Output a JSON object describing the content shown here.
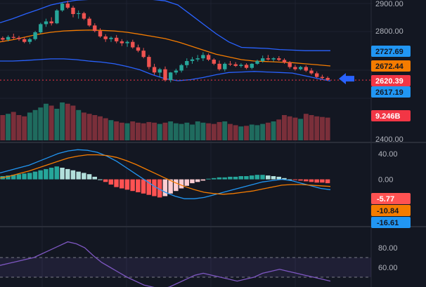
{
  "chart_data": {
    "type": "candlestick",
    "colors": {
      "background": "#131722",
      "up": "#26a69a",
      "down": "#ef5350",
      "bb_upper": "#2962ff",
      "bb_lower": "#2962ff",
      "bb_basis": "#f57c00",
      "macd": "#2196f3",
      "signal": "#f57c00",
      "rsi": "#7e57c2",
      "vol_up": "#1f6b5e",
      "vol_down": "#7a2f3a",
      "hist_up_strong": "#26a69a",
      "hist_up_weak": "#b2dfdb",
      "hist_down_strong": "#ff5252",
      "hist_down_weak": "#ffcdd2",
      "arrow": "#2962ff"
    },
    "price_panel": {
      "y_ticks": [
        "2900.00",
        "2800.00"
      ],
      "y_tick_values": [
        2900,
        2800
      ],
      "candles": [
        [
          2774,
          2780,
          2760,
          2768
        ],
        [
          2768,
          2784,
          2762,
          2778
        ],
        [
          2778,
          2790,
          2770,
          2775
        ],
        [
          2775,
          2782,
          2764,
          2770
        ],
        [
          2770,
          2778,
          2755,
          2760
        ],
        [
          2760,
          2775,
          2752,
          2770
        ],
        [
          2770,
          2800,
          2765,
          2795
        ],
        [
          2795,
          2830,
          2790,
          2825
        ],
        [
          2825,
          2845,
          2815,
          2835
        ],
        [
          2835,
          2850,
          2820,
          2828
        ],
        [
          2828,
          2880,
          2825,
          2875
        ],
        [
          2875,
          2905,
          2870,
          2900
        ],
        [
          2900,
          2910,
          2880,
          2885
        ],
        [
          2885,
          2892,
          2850,
          2862
        ],
        [
          2862,
          2875,
          2845,
          2865
        ],
        [
          2865,
          2870,
          2840,
          2845
        ],
        [
          2845,
          2852,
          2815,
          2820
        ],
        [
          2820,
          2828,
          2795,
          2800
        ],
        [
          2800,
          2810,
          2775,
          2780
        ],
        [
          2780,
          2788,
          2760,
          2770
        ],
        [
          2770,
          2780,
          2760,
          2775
        ],
        [
          2775,
          2785,
          2755,
          2762
        ],
        [
          2762,
          2770,
          2745,
          2755
        ],
        [
          2755,
          2765,
          2742,
          2760
        ],
        [
          2760,
          2768,
          2735,
          2740
        ],
        [
          2740,
          2750,
          2722,
          2728
        ],
        [
          2728,
          2738,
          2700,
          2705
        ],
        [
          2705,
          2712,
          2660,
          2668
        ],
        [
          2668,
          2680,
          2640,
          2648
        ],
        [
          2648,
          2665,
          2630,
          2660
        ],
        [
          2660,
          2670,
          2615,
          2620
        ],
        [
          2620,
          2650,
          2612,
          2648
        ],
        [
          2648,
          2662,
          2640,
          2655
        ],
        [
          2655,
          2680,
          2648,
          2675
        ],
        [
          2675,
          2700,
          2665,
          2690
        ],
        [
          2690,
          2705,
          2680,
          2696
        ],
        [
          2696,
          2712,
          2688,
          2700
        ],
        [
          2700,
          2722,
          2690,
          2712
        ],
        [
          2712,
          2718,
          2690,
          2695
        ],
        [
          2695,
          2700,
          2675,
          2680
        ],
        [
          2680,
          2692,
          2655,
          2660
        ],
        [
          2660,
          2685,
          2652,
          2680
        ],
        [
          2680,
          2690,
          2672,
          2678
        ],
        [
          2678,
          2686,
          2668,
          2672
        ],
        [
          2672,
          2682,
          2666,
          2676
        ],
        [
          2676,
          2682,
          2660,
          2665
        ],
        [
          2665,
          2682,
          2660,
          2680
        ],
        [
          2680,
          2695,
          2676,
          2690
        ],
        [
          2690,
          2710,
          2684,
          2700
        ],
        [
          2700,
          2712,
          2692,
          2696
        ],
        [
          2696,
          2704,
          2688,
          2700
        ],
        [
          2700,
          2708,
          2690,
          2694
        ],
        [
          2694,
          2700,
          2680,
          2685
        ],
        [
          2685,
          2690,
          2662,
          2668
        ],
        [
          2668,
          2676,
          2655,
          2660
        ],
        [
          2660,
          2672,
          2656,
          2668
        ],
        [
          2668,
          2674,
          2650,
          2655
        ],
        [
          2655,
          2664,
          2640,
          2645
        ],
        [
          2645,
          2652,
          2628,
          2632
        ],
        [
          2632,
          2640,
          2622,
          2628
        ],
        [
          2628,
          2634,
          2618,
          2621
        ]
      ],
      "bb_upper": [
        2830,
        2845,
        2862,
        2878,
        2895,
        2905,
        2912,
        2915,
        2918,
        2920,
        2920,
        2918,
        2915,
        2910,
        2895,
        2860,
        2825,
        2790,
        2760,
        2740,
        2738,
        2736,
        2732,
        2730,
        2728,
        2728,
        2728
      ],
      "bb_basis": [
        2760,
        2768,
        2778,
        2788,
        2795,
        2800,
        2802,
        2803,
        2802,
        2800,
        2795,
        2788,
        2780,
        2772,
        2760,
        2745,
        2730,
        2715,
        2705,
        2695,
        2690,
        2688,
        2686,
        2684,
        2680,
        2676,
        2672
      ],
      "bb_lower": [
        2690,
        2690,
        2692,
        2695,
        2698,
        2698,
        2695,
        2690,
        2686,
        2680,
        2670,
        2658,
        2640,
        2625,
        2618,
        2622,
        2630,
        2640,
        2648,
        2650,
        2652,
        2650,
        2648,
        2646,
        2636,
        2626,
        2617
      ],
      "current_price_line": 2620.39
    },
    "price_badges": [
      {
        "label": "2727.69",
        "value": 2727.69,
        "bg": "#2196f3",
        "fg": "#131722"
      },
      {
        "label": "2672.44",
        "value": 2672.44,
        "bg": "#f57c00",
        "fg": "#131722"
      },
      {
        "label": "2620.39",
        "value": 2620.39,
        "bg": "#f23645",
        "fg": "#ffffff"
      },
      {
        "label": "2617.19",
        "value": 2617.19,
        "bg": "#2196f3",
        "fg": "#131722"
      }
    ],
    "volume_panel": {
      "label": "9.246B",
      "label_bg": "#f23645",
      "values": [
        40,
        42,
        45,
        40,
        38,
        44,
        48,
        52,
        58,
        55,
        50,
        60,
        58,
        55,
        48,
        44,
        42,
        40,
        38,
        35,
        32,
        30,
        28,
        27,
        30,
        28,
        27,
        29,
        28,
        26,
        28,
        30,
        27,
        26,
        28,
        25,
        30,
        28,
        27,
        26,
        29,
        30,
        26,
        24,
        22,
        23,
        25,
        24,
        26,
        28,
        30,
        33,
        40,
        38,
        36,
        34,
        42,
        40,
        38,
        37,
        36
      ],
      "bottom_tick": "2400.00"
    },
    "macd_panel": {
      "y_ticks": [
        "40.00",
        "0.00"
      ],
      "y_tick_values": [
        40,
        0
      ],
      "histogram": [
        5,
        6,
        7,
        8,
        9,
        10,
        12,
        14,
        16,
        18,
        20,
        18,
        16,
        14,
        12,
        10,
        8,
        4,
        0,
        -4,
        -8,
        -12,
        -14,
        -16,
        -18,
        -20,
        -22,
        -24,
        -26,
        -28,
        -26,
        -22,
        -18,
        -14,
        -10,
        -6,
        -4,
        -2,
        1,
        2,
        3,
        3,
        4,
        4,
        5,
        5,
        6,
        7,
        7,
        6,
        5,
        4,
        2,
        0,
        -1,
        -2,
        -3,
        -4,
        -5,
        -5,
        -6
      ],
      "macd": [
        10,
        14,
        18,
        22,
        28,
        34,
        40,
        44,
        46,
        45,
        42,
        36,
        28,
        18,
        8,
        -2,
        -12,
        -20,
        -26,
        -30,
        -30,
        -28,
        -24,
        -20,
        -16,
        -12,
        -8,
        -4,
        -2,
        0,
        -2,
        -6,
        -10,
        -14,
        -16
      ],
      "signal": [
        2,
        5,
        9,
        13,
        18,
        23,
        28,
        33,
        36,
        38,
        38,
        37,
        34,
        29,
        23,
        16,
        9,
        2,
        -5,
        -11,
        -16,
        -20,
        -22,
        -23,
        -22,
        -20,
        -18,
        -15,
        -12,
        -9,
        -8,
        -8,
        -9,
        -10,
        -11
      ],
      "badges": [
        {
          "label": "-5.77",
          "value": -5.77,
          "bg": "#ff5252",
          "fg": "#ffffff"
        },
        {
          "label": "-10.84",
          "value": -10.84,
          "bg": "#f57c00",
          "fg": "#131722"
        },
        {
          "label": "-16.61",
          "value": -16.61,
          "bg": "#2196f3",
          "fg": "#131722"
        }
      ]
    },
    "rsi_panel": {
      "y_ticks": [
        "80.00",
        "60.00"
      ],
      "y_tick_values": [
        80,
        60
      ],
      "upper_band": 70,
      "lower_band": 50,
      "values": [
        62,
        64,
        66,
        68,
        70,
        74,
        78,
        82,
        86,
        84,
        80,
        72,
        65,
        60,
        55,
        50,
        46,
        42,
        40,
        38,
        40,
        44,
        48,
        52,
        54,
        52,
        50,
        48,
        46,
        48,
        50,
        54,
        56,
        58,
        56,
        54,
        52,
        50,
        48,
        46
      ]
    }
  }
}
